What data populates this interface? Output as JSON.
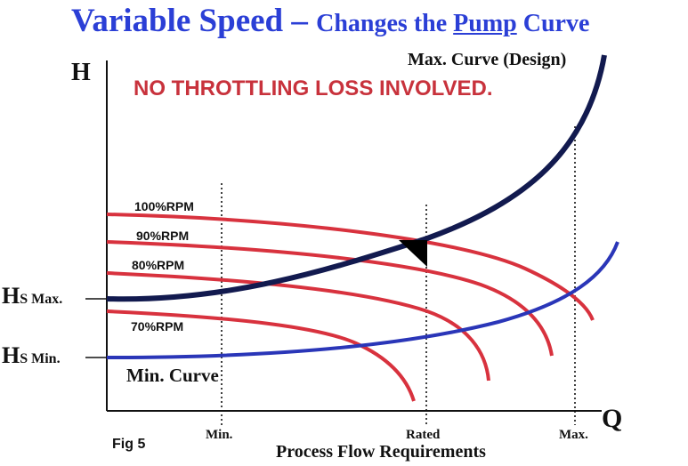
{
  "title": {
    "main": "Variable Speed",
    "dash": " – ",
    "sub_prefix": "Changes the ",
    "sub_underlined": "Pump",
    "sub_suffix": " Curve"
  },
  "callout": "NO THROTTLING LOSS INVOLVED.",
  "axes": {
    "y_label": "H",
    "x_label": "Q",
    "x_title": "Process Flow Requirements"
  },
  "head_levels": {
    "max": {
      "main": "H",
      "sub": "S Max."
    },
    "min": {
      "main": "H",
      "sub": "S Min."
    }
  },
  "system_curves": {
    "max_label": "Max. Curve (Design)",
    "min_label": "Min. Curve"
  },
  "pump_curves": [
    "100%RPM",
    "90%RPM",
    "80%RPM",
    "70%RPM"
  ],
  "flow_ticks": [
    "Min.",
    "Rated",
    "Max."
  ],
  "figure_label": "Fig 5",
  "colors": {
    "title": "#2b3fd6",
    "pump_curve": "#d8323e",
    "max_curve": "#121a4f",
    "min_curve": "#2a36b8",
    "callout": "#c8323c"
  }
}
